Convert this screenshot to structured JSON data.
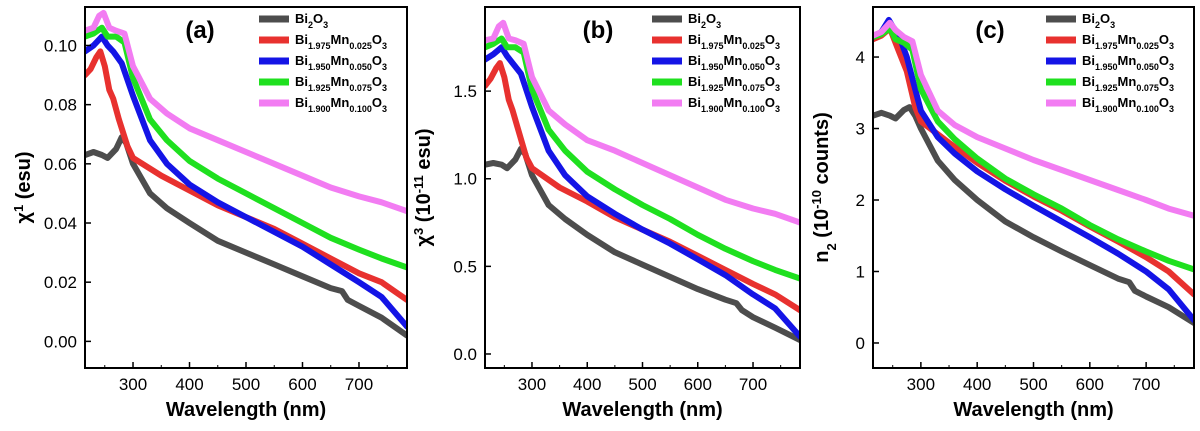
{
  "chart_data": [
    {
      "type": "line",
      "panel": "(a)",
      "xlabel": "Wavelength (nm)",
      "ylabel": {
        "main": "χ",
        "sup": "1",
        "rest": " (esu)"
      },
      "xlim": [
        215,
        785
      ],
      "ylim": [
        -0.009,
        0.113
      ],
      "xticks": [
        300,
        400,
        500,
        600,
        700
      ],
      "yticks": [
        0.0,
        0.02,
        0.04,
        0.06,
        0.08,
        0.1
      ],
      "ytick_labels": [
        "0.00",
        "0.02",
        "0.04",
        "0.06",
        "0.08",
        "0.10"
      ],
      "series": [
        {
          "name": "Bi2O3",
          "color": "#4d4d4d",
          "x": [
            215,
            230,
            245,
            255,
            270,
            280,
            288,
            300,
            330,
            360,
            400,
            450,
            500,
            550,
            600,
            650,
            670,
            680,
            700,
            740,
            785
          ],
          "values": [
            0.063,
            0.064,
            0.063,
            0.062,
            0.065,
            0.069,
            0.067,
            0.06,
            0.05,
            0.045,
            0.04,
            0.034,
            0.03,
            0.026,
            0.022,
            0.018,
            0.017,
            0.014,
            0.012,
            0.008,
            0.002
          ]
        },
        {
          "name": "Bi1.975Mn0.025O3",
          "color": "#e8312f",
          "x": [
            215,
            225,
            235,
            242,
            250,
            258,
            265,
            275,
            290,
            300,
            350,
            400,
            450,
            500,
            550,
            600,
            650,
            700,
            740,
            785
          ],
          "values": [
            0.09,
            0.092,
            0.096,
            0.098,
            0.093,
            0.085,
            0.082,
            0.075,
            0.066,
            0.062,
            0.056,
            0.051,
            0.046,
            0.042,
            0.038,
            0.033,
            0.028,
            0.023,
            0.02,
            0.014
          ]
        },
        {
          "name": "Bi1.950Mn0.050O3",
          "color": "#1414e6",
          "x": [
            215,
            230,
            245,
            255,
            265,
            280,
            300,
            330,
            360,
            400,
            450,
            500,
            550,
            600,
            650,
            700,
            740,
            785
          ],
          "values": [
            0.098,
            0.1,
            0.103,
            0.1,
            0.098,
            0.094,
            0.083,
            0.068,
            0.06,
            0.053,
            0.047,
            0.042,
            0.037,
            0.032,
            0.026,
            0.02,
            0.015,
            0.005
          ]
        },
        {
          "name": "Bi1.925Mn0.075O3",
          "color": "#1fe01f",
          "x": [
            215,
            230,
            245,
            255,
            270,
            285,
            300,
            330,
            360,
            400,
            450,
            500,
            550,
            600,
            650,
            700,
            740,
            785
          ],
          "values": [
            0.103,
            0.104,
            0.106,
            0.103,
            0.103,
            0.101,
            0.089,
            0.075,
            0.068,
            0.061,
            0.055,
            0.05,
            0.045,
            0.04,
            0.035,
            0.031,
            0.028,
            0.025
          ]
        },
        {
          "name": "Bi1.900Mn0.100O3",
          "color": "#f27cf2",
          "x": [
            215,
            230,
            240,
            248,
            258,
            270,
            285,
            300,
            330,
            360,
            400,
            450,
            500,
            550,
            600,
            650,
            700,
            740,
            785
          ],
          "values": [
            0.105,
            0.106,
            0.11,
            0.111,
            0.106,
            0.105,
            0.104,
            0.093,
            0.082,
            0.077,
            0.072,
            0.068,
            0.064,
            0.06,
            0.056,
            0.052,
            0.049,
            0.047,
            0.044
          ]
        }
      ]
    },
    {
      "type": "line",
      "panel": "(b)",
      "xlabel": "Wavelength (nm)",
      "ylabel": {
        "main": "χ",
        "sup": "3",
        "rest": " (10",
        "sup2": "-11",
        "rest2": " esu)"
      },
      "xlim": [
        215,
        785
      ],
      "ylim": [
        -0.08,
        1.98
      ],
      "xticks": [
        300,
        400,
        500,
        600,
        700
      ],
      "yticks": [
        0.0,
        0.5,
        1.0,
        1.5
      ],
      "ytick_labels": [
        "0.0",
        "0.5",
        "1.0",
        "1.5"
      ],
      "series": [
        {
          "name": "Bi2O3",
          "color": "#4d4d4d",
          "x": [
            215,
            230,
            245,
            255,
            270,
            280,
            288,
            300,
            330,
            360,
            400,
            450,
            500,
            550,
            600,
            650,
            670,
            680,
            700,
            740,
            785
          ],
          "values": [
            1.08,
            1.09,
            1.08,
            1.06,
            1.11,
            1.17,
            1.14,
            1.02,
            0.85,
            0.77,
            0.68,
            0.58,
            0.51,
            0.44,
            0.37,
            0.31,
            0.29,
            0.25,
            0.21,
            0.15,
            0.08
          ]
        },
        {
          "name": "Bi1.975Mn0.025O3",
          "color": "#e8312f",
          "x": [
            215,
            225,
            235,
            242,
            250,
            258,
            265,
            275,
            290,
            300,
            350,
            400,
            450,
            500,
            550,
            600,
            650,
            700,
            740,
            785
          ],
          "values": [
            1.53,
            1.57,
            1.63,
            1.66,
            1.58,
            1.45,
            1.39,
            1.28,
            1.12,
            1.06,
            0.95,
            0.87,
            0.78,
            0.71,
            0.64,
            0.56,
            0.48,
            0.4,
            0.34,
            0.25
          ]
        },
        {
          "name": "Bi1.950Mn0.050O3",
          "color": "#1414e6",
          "x": [
            215,
            230,
            245,
            255,
            265,
            280,
            300,
            330,
            360,
            400,
            450,
            500,
            550,
            600,
            650,
            700,
            740,
            785
          ],
          "values": [
            1.68,
            1.71,
            1.75,
            1.7,
            1.66,
            1.6,
            1.41,
            1.16,
            1.02,
            0.9,
            0.8,
            0.71,
            0.63,
            0.54,
            0.45,
            0.34,
            0.26,
            0.1
          ]
        },
        {
          "name": "Bi1.925Mn0.075O3",
          "color": "#1fe01f",
          "x": [
            215,
            230,
            245,
            255,
            270,
            285,
            300,
            330,
            360,
            400,
            450,
            500,
            550,
            600,
            650,
            700,
            740,
            785
          ],
          "values": [
            1.75,
            1.77,
            1.8,
            1.75,
            1.75,
            1.72,
            1.51,
            1.28,
            1.16,
            1.04,
            0.94,
            0.85,
            0.77,
            0.68,
            0.6,
            0.53,
            0.48,
            0.43
          ]
        },
        {
          "name": "Bi1.900Mn0.100O3",
          "color": "#f27cf2",
          "x": [
            215,
            230,
            240,
            248,
            258,
            270,
            285,
            300,
            330,
            360,
            400,
            450,
            500,
            550,
            600,
            650,
            700,
            740,
            785
          ],
          "values": [
            1.79,
            1.8,
            1.87,
            1.89,
            1.8,
            1.79,
            1.77,
            1.58,
            1.39,
            1.31,
            1.22,
            1.16,
            1.09,
            1.02,
            0.95,
            0.88,
            0.83,
            0.8,
            0.75
          ]
        }
      ]
    },
    {
      "type": "line",
      "panel": "(c)",
      "xlabel": "Wavelength (nm)",
      "ylabel": {
        "main": "n",
        "sub": "2",
        "rest": " (10",
        "sup2": "-10",
        "rest2": " counts)"
      },
      "xlim": [
        215,
        785
      ],
      "ylim": [
        -0.35,
        4.7
      ],
      "xticks": [
        300,
        400,
        500,
        600,
        700
      ],
      "yticks": [
        0,
        1,
        2,
        3,
        4
      ],
      "ytick_labels": [
        "0",
        "1",
        "2",
        "3",
        "4"
      ],
      "series": [
        {
          "name": "Bi2O3",
          "color": "#4d4d4d",
          "x": [
            215,
            230,
            245,
            255,
            270,
            280,
            290,
            300,
            330,
            360,
            400,
            450,
            500,
            550,
            600,
            650,
            670,
            680,
            700,
            740,
            785
          ],
          "values": [
            3.18,
            3.22,
            3.18,
            3.14,
            3.26,
            3.3,
            3.18,
            3.0,
            2.55,
            2.28,
            2.0,
            1.7,
            1.48,
            1.28,
            1.09,
            0.9,
            0.85,
            0.73,
            0.65,
            0.5,
            0.28
          ]
        },
        {
          "name": "Bi1.975Mn0.025O3",
          "color": "#e8312f",
          "x": [
            215,
            230,
            245,
            260,
            275,
            290,
            300,
            350,
            400,
            450,
            500,
            550,
            600,
            650,
            700,
            740,
            785
          ],
          "values": [
            4.25,
            4.3,
            4.4,
            4.1,
            3.8,
            3.3,
            3.1,
            2.8,
            2.52,
            2.27,
            2.05,
            1.85,
            1.63,
            1.42,
            1.2,
            1.0,
            0.68
          ]
        },
        {
          "name": "Bi1.950Mn0.050O3",
          "color": "#1414e6",
          "x": [
            215,
            230,
            243,
            252,
            262,
            275,
            290,
            300,
            330,
            360,
            400,
            450,
            500,
            550,
            600,
            650,
            700,
            740,
            785
          ],
          "values": [
            4.28,
            4.35,
            4.52,
            4.4,
            4.28,
            4.0,
            3.55,
            3.25,
            2.88,
            2.65,
            2.4,
            2.15,
            1.92,
            1.7,
            1.48,
            1.25,
            1.0,
            0.75,
            0.32
          ]
        },
        {
          "name": "Bi1.925Mn0.075O3",
          "color": "#1fe01f",
          "x": [
            215,
            230,
            245,
            255,
            270,
            285,
            300,
            330,
            360,
            400,
            450,
            500,
            550,
            600,
            650,
            700,
            740,
            785
          ],
          "values": [
            4.28,
            4.32,
            4.4,
            4.25,
            4.2,
            4.1,
            3.55,
            3.1,
            2.85,
            2.58,
            2.3,
            2.08,
            1.88,
            1.65,
            1.45,
            1.28,
            1.15,
            1.03
          ]
        },
        {
          "name": "Bi1.900Mn0.100O3",
          "color": "#f27cf2",
          "x": [
            215,
            230,
            245,
            255,
            270,
            285,
            300,
            330,
            360,
            400,
            450,
            500,
            550,
            600,
            650,
            700,
            740,
            785
          ],
          "values": [
            4.3,
            4.35,
            4.48,
            4.38,
            4.28,
            4.22,
            3.75,
            3.25,
            3.05,
            2.88,
            2.72,
            2.56,
            2.42,
            2.28,
            2.14,
            2.0,
            1.88,
            1.78
          ]
        }
      ]
    }
  ],
  "legend_labels": [
    [
      {
        "t": "Bi"
      },
      {
        "t": "2",
        "sub": true
      },
      {
        "t": "O"
      },
      {
        "t": "3",
        "sub": true
      }
    ],
    [
      {
        "t": "Bi"
      },
      {
        "t": "1.975",
        "sub": true
      },
      {
        "t": "Mn"
      },
      {
        "t": "0.025",
        "sub": true
      },
      {
        "t": "O"
      },
      {
        "t": "3",
        "sub": true
      }
    ],
    [
      {
        "t": "Bi"
      },
      {
        "t": "1.950",
        "sub": true
      },
      {
        "t": "Mn"
      },
      {
        "t": "0.050",
        "sub": true
      },
      {
        "t": "O"
      },
      {
        "t": "3",
        "sub": true
      }
    ],
    [
      {
        "t": "Bi"
      },
      {
        "t": "1.925",
        "sub": true
      },
      {
        "t": "Mn"
      },
      {
        "t": "0.075",
        "sub": true
      },
      {
        "t": "O"
      },
      {
        "t": "3",
        "sub": true
      }
    ],
    [
      {
        "t": "Bi"
      },
      {
        "t": "1.900",
        "sub": true
      },
      {
        "t": "Mn"
      },
      {
        "t": "0.100",
        "sub": true
      },
      {
        "t": "O"
      },
      {
        "t": "3",
        "sub": true
      }
    ]
  ]
}
